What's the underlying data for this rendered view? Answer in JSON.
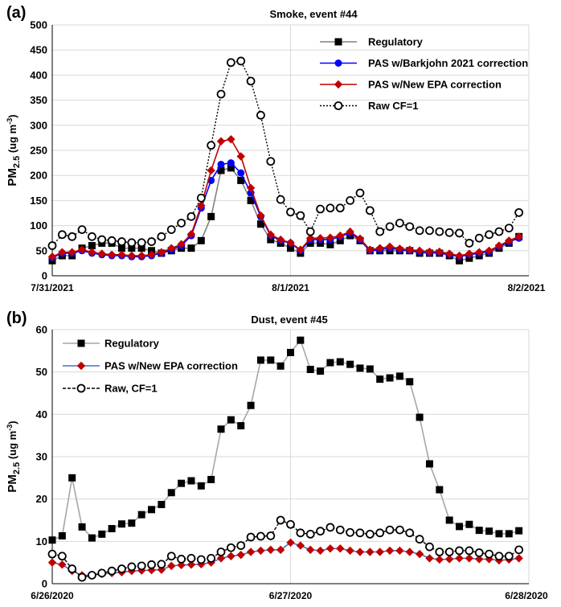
{
  "chart_data": [
    {
      "type": "line",
      "panel_label": "(a)",
      "title": "Smoke, event #44",
      "ylabel_main": "PM",
      "ylabel_sub": "2.5",
      "ylabel_unit": " (ug m",
      "ylabel_sup": "-3",
      "ylabel_close": ")",
      "ylim": [
        0,
        500
      ],
      "yticks": [
        0,
        50,
        100,
        150,
        200,
        250,
        300,
        350,
        400,
        450,
        500
      ],
      "xlim": [
        0,
        48
      ],
      "xtick_positions": [
        0,
        24,
        48
      ],
      "xtick_labels": [
        "7/31/2021",
        "8/1/2021",
        "8/2/2021"
      ],
      "grid": true,
      "legend_position": "top-right",
      "series": [
        {
          "name": "Regulatory",
          "color": "#808080",
          "marker": "square",
          "marker_color": "#000000",
          "line": "solid",
          "x": [
            0,
            1,
            2,
            3,
            4,
            5,
            6,
            7,
            8,
            9,
            10,
            11,
            12,
            13,
            14,
            15,
            16,
            17,
            18,
            19,
            20,
            21,
            22,
            23,
            24,
            25,
            26,
            27,
            28,
            29,
            30,
            31,
            32,
            33,
            34,
            35,
            36,
            37,
            38,
            39,
            40,
            41,
            42,
            43,
            44,
            45,
            46,
            47
          ],
          "y": [
            30,
            40,
            40,
            55,
            60,
            65,
            65,
            55,
            55,
            55,
            50,
            45,
            50,
            55,
            55,
            70,
            118,
            210,
            215,
            190,
            150,
            103,
            72,
            65,
            55,
            45,
            65,
            65,
            62,
            70,
            80,
            70,
            50,
            50,
            50,
            50,
            50,
            45,
            45,
            45,
            40,
            30,
            35,
            40,
            45,
            55,
            65,
            78
          ]
        },
        {
          "name": "PAS w/Barkjohn 2021 correction",
          "color": "#0000ff",
          "marker": "circle",
          "marker_color": "#0000ff",
          "line": "solid",
          "x": [
            0,
            1,
            2,
            3,
            4,
            5,
            6,
            7,
            8,
            9,
            10,
            11,
            12,
            13,
            14,
            15,
            16,
            17,
            18,
            19,
            20,
            21,
            22,
            23,
            24,
            25,
            26,
            27,
            28,
            29,
            30,
            31,
            32,
            33,
            34,
            35,
            36,
            37,
            38,
            39,
            40,
            41,
            42,
            43,
            44,
            45,
            46,
            47
          ],
          "y": [
            36,
            45,
            45,
            50,
            45,
            42,
            40,
            40,
            38,
            38,
            40,
            45,
            52,
            60,
            80,
            135,
            190,
            222,
            225,
            205,
            165,
            118,
            80,
            70,
            65,
            50,
            72,
            72,
            72,
            78,
            85,
            72,
            50,
            52,
            55,
            52,
            50,
            48,
            46,
            46,
            42,
            38,
            42,
            45,
            48,
            58,
            68,
            75
          ]
        },
        {
          "name": "PAS w/New EPA correction",
          "color": "#c00000",
          "marker": "diamond",
          "marker_color": "#c00000",
          "line": "solid",
          "x": [
            0,
            1,
            2,
            3,
            4,
            5,
            6,
            7,
            8,
            9,
            10,
            11,
            12,
            13,
            14,
            15,
            16,
            17,
            18,
            19,
            20,
            21,
            22,
            23,
            24,
            25,
            26,
            27,
            28,
            29,
            30,
            31,
            32,
            33,
            34,
            35,
            36,
            37,
            38,
            39,
            40,
            41,
            42,
            43,
            44,
            45,
            46,
            47
          ],
          "y": [
            38,
            47,
            47,
            52,
            47,
            44,
            42,
            42,
            40,
            40,
            42,
            47,
            55,
            63,
            83,
            140,
            210,
            268,
            272,
            238,
            175,
            120,
            82,
            72,
            66,
            52,
            75,
            75,
            76,
            80,
            88,
            74,
            52,
            55,
            58,
            54,
            52,
            50,
            48,
            48,
            44,
            40,
            44,
            47,
            50,
            60,
            70,
            78
          ]
        },
        {
          "name": "Raw CF=1",
          "color": "#000000",
          "marker": "open-circle",
          "marker_color": "#000000",
          "line": "dotted",
          "x": [
            0,
            1,
            2,
            3,
            4,
            5,
            6,
            7,
            8,
            9,
            10,
            11,
            12,
            13,
            14,
            15,
            16,
            17,
            18,
            19,
            20,
            21,
            22,
            23,
            24,
            25,
            26,
            27,
            28,
            29,
            30,
            31,
            32,
            33,
            34,
            35,
            36,
            37,
            38,
            39,
            40,
            41,
            42,
            43,
            44,
            45,
            46,
            47
          ],
          "y": [
            60,
            82,
            78,
            92,
            78,
            72,
            70,
            68,
            66,
            66,
            68,
            78,
            92,
            105,
            118,
            155,
            260,
            362,
            425,
            428,
            388,
            320,
            228,
            152,
            127,
            120,
            88,
            133,
            135,
            135,
            150,
            165,
            130,
            88,
            98,
            105,
            98,
            90,
            90,
            88,
            86,
            85,
            65,
            75,
            82,
            88,
            95,
            126
          ]
        }
      ]
    },
    {
      "type": "line",
      "panel_label": "(b)",
      "title": "Dust, event #45",
      "ylabel_main": "PM",
      "ylabel_sub": "2.5",
      "ylabel_unit": " (ug m",
      "ylabel_sup": "-3",
      "ylabel_close": ")",
      "ylim": [
        0,
        60
      ],
      "yticks": [
        0,
        10,
        20,
        30,
        40,
        50,
        60
      ],
      "xlim": [
        0,
        48
      ],
      "xtick_positions": [
        0,
        24,
        48
      ],
      "xtick_labels": [
        "6/26/2020",
        "6/27/2020",
        "6/28/2020"
      ],
      "grid": true,
      "legend_position": "top-left",
      "series": [
        {
          "name": "Regulatory",
          "color": "#a6a6a6",
          "marker": "square",
          "marker_color": "#000000",
          "line": "solid",
          "x": [
            0,
            1,
            2,
            3,
            4,
            5,
            6,
            7,
            8,
            9,
            10,
            11,
            12,
            13,
            14,
            15,
            16,
            17,
            18,
            19,
            20,
            21,
            22,
            23,
            24,
            25,
            26,
            27,
            28,
            29,
            30,
            31,
            32,
            33,
            34,
            35,
            36,
            37,
            38,
            39,
            40,
            41,
            42,
            43,
            44,
            45,
            46,
            47
          ],
          "y": [
            10.3,
            11.3,
            25,
            13.4,
            10.8,
            11.7,
            13,
            14.1,
            14.3,
            16.3,
            17.5,
            18.7,
            21.5,
            23.7,
            24.3,
            23.1,
            24.6,
            36.5,
            38.7,
            37.3,
            42.1,
            52.8,
            52.8,
            51.4,
            54.6,
            57.5,
            50.6,
            50.2,
            52.2,
            52.4,
            51.8,
            50.9,
            50.7,
            48.3,
            48.6,
            49,
            47.7,
            39.3,
            28.3,
            22.2,
            15,
            13.5,
            14,
            12.6,
            12.4,
            11.8,
            11.8,
            12.5
          ]
        },
        {
          "name": "PAS w/New EPA correction",
          "color": "#4472c4",
          "marker": "diamond",
          "marker_color": "#c00000",
          "line": "solid",
          "x": [
            0,
            1,
            2,
            3,
            4,
            5,
            6,
            7,
            8,
            9,
            10,
            11,
            12,
            13,
            14,
            15,
            16,
            17,
            18,
            19,
            20,
            21,
            22,
            23,
            24,
            25,
            26,
            27,
            28,
            29,
            30,
            31,
            32,
            33,
            34,
            35,
            36,
            37,
            38,
            39,
            40,
            41,
            42,
            43,
            44,
            45,
            46,
            47
          ],
          "y": [
            5,
            4.5,
            3,
            2,
            2,
            2.3,
            2.5,
            2.7,
            3,
            3.1,
            3.2,
            3.3,
            4.2,
            4.4,
            4.5,
            4.6,
            5,
            6,
            6.5,
            6.8,
            7.5,
            7.8,
            8,
            8,
            9.7,
            9,
            8,
            7.8,
            8.3,
            8.3,
            7.8,
            7.5,
            7.5,
            7.5,
            7.8,
            7.8,
            7.5,
            7,
            6,
            5.7,
            5.8,
            6,
            6,
            5.8,
            5.8,
            5.5,
            5.7,
            6
          ]
        },
        {
          "name": "Raw, CF=1",
          "color": "#000000",
          "marker": "open-circle",
          "marker_color": "#000000",
          "line": "dashed",
          "x": [
            0,
            1,
            2,
            3,
            4,
            5,
            6,
            7,
            8,
            9,
            10,
            11,
            12,
            13,
            14,
            15,
            16,
            17,
            18,
            19,
            20,
            21,
            22,
            23,
            24,
            25,
            26,
            27,
            28,
            29,
            30,
            31,
            32,
            33,
            34,
            35,
            36,
            37,
            38,
            39,
            40,
            41,
            42,
            43,
            44,
            45,
            46,
            47
          ],
          "y": [
            7,
            6.5,
            3.5,
            1.5,
            2,
            2.5,
            3,
            3.5,
            4,
            4.2,
            4.5,
            4.6,
            6.5,
            5.8,
            6,
            5.7,
            6,
            7.5,
            8.5,
            9,
            11,
            11.2,
            11.3,
            15,
            14,
            12,
            11.7,
            12.4,
            13.3,
            12.7,
            12.1,
            12,
            11.7,
            12,
            12.7,
            12.7,
            12,
            10.5,
            8.7,
            7.5,
            7.5,
            7.8,
            7.8,
            7.3,
            7,
            6.5,
            6.5,
            8
          ]
        }
      ]
    }
  ]
}
